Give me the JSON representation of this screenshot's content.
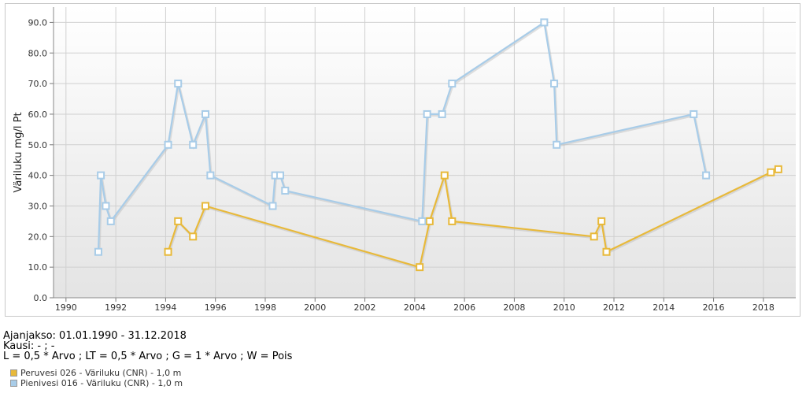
{
  "info": {
    "period": "Ajanjakso: 01.01.1990 - 31.12.2018",
    "season": "Kausi: - ; -",
    "formula": "L = 0,5 * Arvo ; LT = 0,5 * Arvo ; G = 1 * Arvo ; W = Pois"
  },
  "legend": [
    {
      "label": "Peruvesi 026 - Väriluku (CNR) - 1,0 m",
      "color": "#e8b93a"
    },
    {
      "label": "Pienivesi 016 - Väriluku (CNR) - 1,0 m",
      "color": "#a8cce8"
    }
  ],
  "chart_data": {
    "type": "line",
    "title": "",
    "xlabel": "",
    "ylabel": "Väriluku mg/l Pt",
    "xlim": [
      1989.5,
      2019.3
    ],
    "ylim": [
      0,
      95
    ],
    "x_ticks": [
      "1990",
      "1992",
      "1994",
      "1996",
      "1998",
      "2000",
      "2002",
      "2004",
      "2006",
      "2008",
      "2010",
      "2012",
      "2014",
      "2016",
      "2018"
    ],
    "y_ticks": [
      "0.0",
      "10.0",
      "20.0",
      "30.0",
      "40.0",
      "50.0",
      "60.0",
      "70.0",
      "80.0",
      "90.0"
    ],
    "grid": true,
    "series": [
      {
        "name": "Peruvesi 026 - Väriluku (CNR) - 1,0 m",
        "color": "#e8b93a",
        "points": [
          [
            1994.1,
            15
          ],
          [
            1994.5,
            25
          ],
          [
            1995.1,
            20
          ],
          [
            1995.6,
            30
          ],
          [
            2004.2,
            10
          ],
          [
            2004.6,
            25
          ],
          [
            2005.2,
            40
          ],
          [
            2005.5,
            25
          ],
          [
            2011.2,
            20
          ],
          [
            2011.5,
            25
          ],
          [
            2011.7,
            15
          ],
          [
            2018.3,
            41
          ],
          [
            2018.6,
            42
          ]
        ]
      },
      {
        "name": "Pienivesi 016 - Väriluku (CNR) - 1,0 m",
        "color": "#a8cce8",
        "points": [
          [
            1991.3,
            15
          ],
          [
            1991.4,
            40
          ],
          [
            1991.6,
            30
          ],
          [
            1991.8,
            25
          ],
          [
            1994.1,
            50
          ],
          [
            1994.5,
            70
          ],
          [
            1995.1,
            50
          ],
          [
            1995.6,
            60
          ],
          [
            1995.8,
            40
          ],
          [
            1998.3,
            30
          ],
          [
            1998.4,
            40
          ],
          [
            1998.6,
            40
          ],
          [
            1998.8,
            35
          ],
          [
            2004.3,
            25
          ],
          [
            2004.5,
            60
          ],
          [
            2005.1,
            60
          ],
          [
            2005.5,
            70
          ],
          [
            2009.2,
            90
          ],
          [
            2009.6,
            70
          ],
          [
            2009.7,
            50
          ],
          [
            2015.2,
            60
          ],
          [
            2015.7,
            40
          ]
        ]
      }
    ]
  }
}
